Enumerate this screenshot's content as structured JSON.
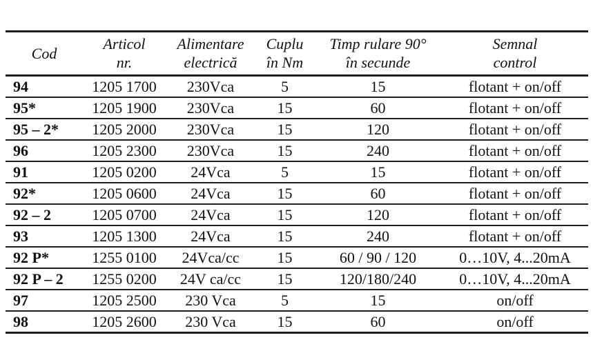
{
  "page": {
    "background": "#ffffff",
    "text_color": "#111111",
    "border_color": "#1c1c1c"
  },
  "table": {
    "columns": [
      {
        "id": "cod",
        "line1": "Cod",
        "line2": ""
      },
      {
        "id": "articol",
        "line1": "Articol",
        "line2": "nr."
      },
      {
        "id": "alimentare",
        "line1": "Alimentare",
        "line2": "electrică"
      },
      {
        "id": "cuplu",
        "line1": "Cuplu",
        "line2": "în Nm"
      },
      {
        "id": "timp",
        "line1": "Timp rulare 90°",
        "line2": "în secunde"
      },
      {
        "id": "semnal",
        "line1": "Semnal",
        "line2": "control"
      }
    ],
    "rows": [
      [
        "94",
        "1205 1700",
        "230Vca",
        "5",
        "15",
        "flotant + on/off"
      ],
      [
        "95*",
        "1205 1900",
        "230Vca",
        "15",
        "60",
        "flotant + on/off"
      ],
      [
        "95 – 2*",
        "1205 2000",
        "230Vca",
        "15",
        "120",
        "flotant + on/off"
      ],
      [
        "96",
        "1205 2300",
        "230Vca",
        "15",
        "240",
        "flotant + on/off"
      ],
      [
        "91",
        "1205 0200",
        "24Vca",
        "5",
        "15",
        "flotant + on/off"
      ],
      [
        "92*",
        "1205 0600",
        "24Vca",
        "15",
        "60",
        "flotant + on/off"
      ],
      [
        "92 – 2",
        "1205 0700",
        "24Vca",
        "15",
        "120",
        "flotant + on/off"
      ],
      [
        "93",
        "1205 1300",
        "24Vca",
        "15",
        "240",
        "flotant + on/off"
      ],
      [
        "92 P*",
        "1255 0100",
        "24Vca/cc",
        "15",
        "60 / 90 / 120",
        "0…10V, 4...20mA"
      ],
      [
        "92 P – 2",
        "1255 0200",
        "24V ca/cc",
        "15",
        "120/180/240",
        "0…10V, 4...20mA"
      ],
      [
        "97",
        "1205 2500",
        "230 Vca",
        "5",
        "15",
        "on/off"
      ],
      [
        "98",
        "1205 2600",
        "230 Vca",
        "15",
        "60",
        "on/off"
      ]
    ]
  }
}
